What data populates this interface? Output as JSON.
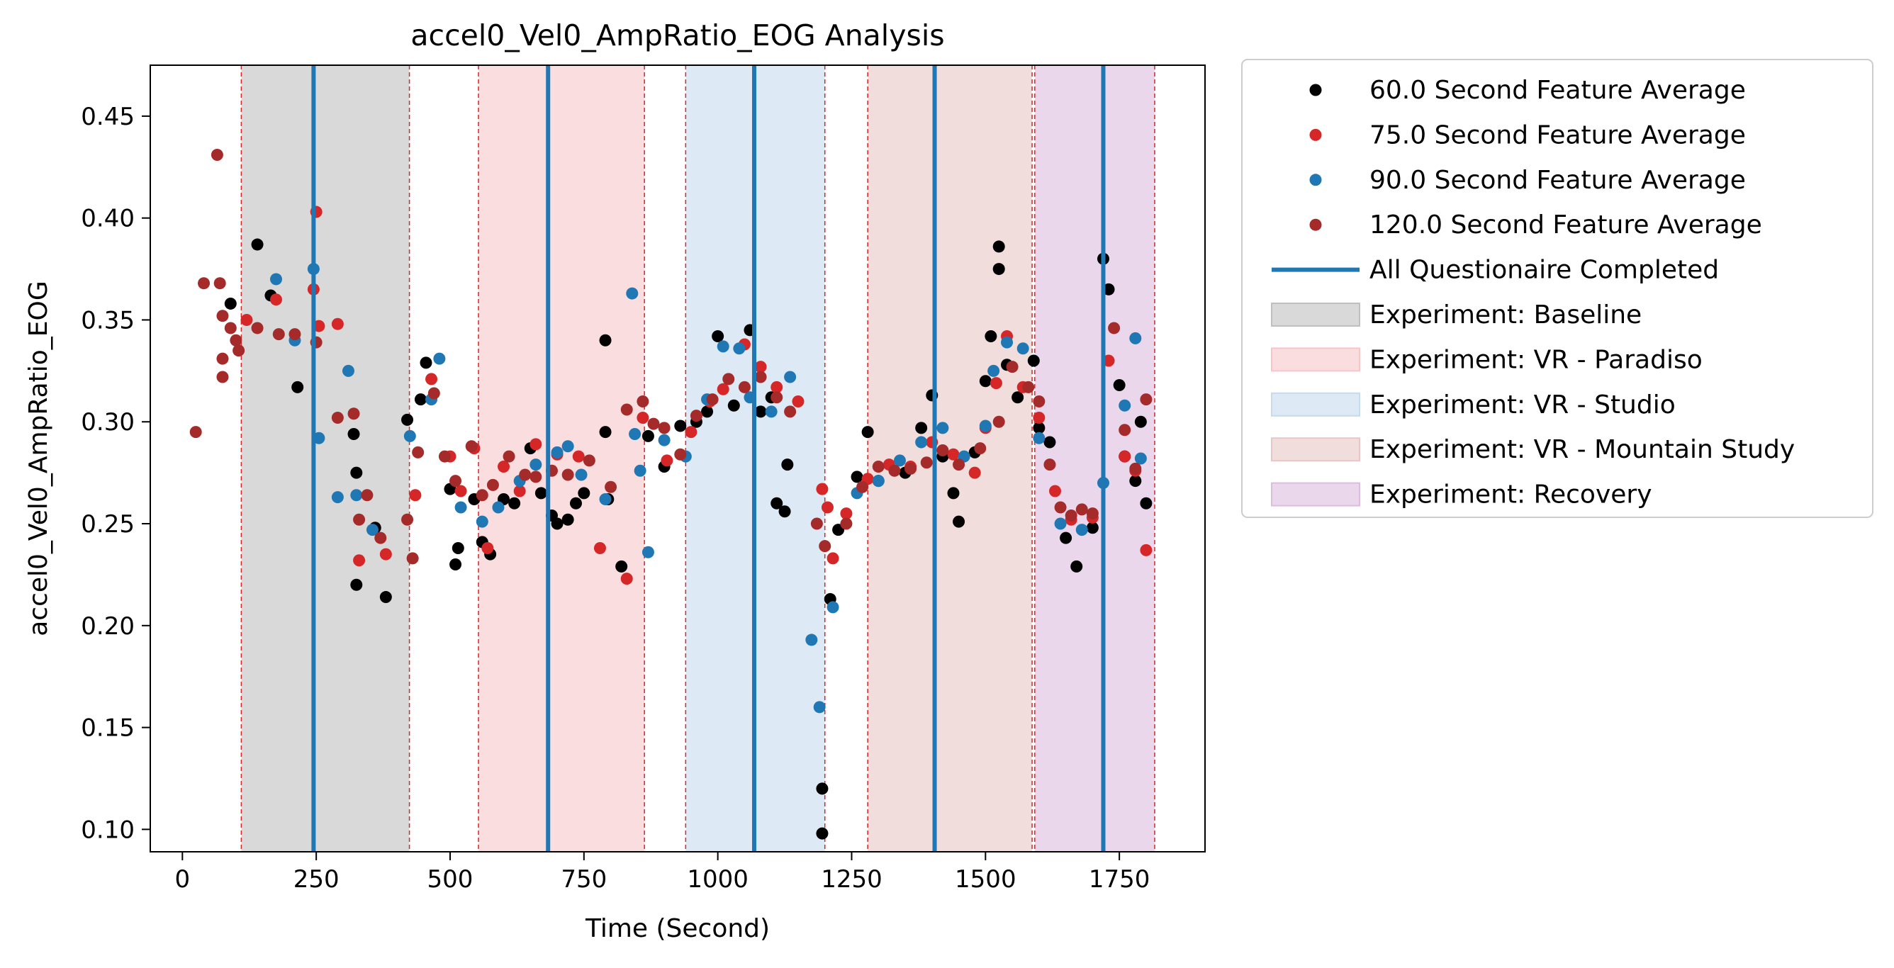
{
  "chart_data": {
    "type": "scatter",
    "title": "accel0_Vel0_AmpRatio_EOG Analysis",
    "xlabel": "Time (Second)",
    "ylabel": "accel0_Vel0_AmpRatio_EOG",
    "xlim": [
      -60,
      1910
    ],
    "ylim": [
      0.089,
      0.475
    ],
    "x_ticks": [
      0,
      250,
      500,
      750,
      1000,
      1250,
      1500,
      1750
    ],
    "y_ticks": [
      0.1,
      0.15,
      0.2,
      0.25,
      0.3,
      0.35,
      0.4,
      0.45
    ],
    "grid": false,
    "legend_position": "outside-right-top",
    "series": [
      {
        "name": "60.0 Second Feature Average",
        "color": "#000000",
        "points": [
          [
            90,
            0.358
          ],
          [
            140,
            0.387
          ],
          [
            165,
            0.362
          ],
          [
            215,
            0.317
          ],
          [
            320,
            0.294
          ],
          [
            325,
            0.275
          ],
          [
            325,
            0.22
          ],
          [
            360,
            0.248
          ],
          [
            380,
            0.214
          ],
          [
            420,
            0.301
          ],
          [
            445,
            0.311
          ],
          [
            455,
            0.329
          ],
          [
            500,
            0.267
          ],
          [
            510,
            0.23
          ],
          [
            515,
            0.238
          ],
          [
            545,
            0.262
          ],
          [
            560,
            0.241
          ],
          [
            575,
            0.235
          ],
          [
            600,
            0.262
          ],
          [
            620,
            0.26
          ],
          [
            650,
            0.287
          ],
          [
            670,
            0.265
          ],
          [
            690,
            0.254
          ],
          [
            700,
            0.25
          ],
          [
            720,
            0.252
          ],
          [
            735,
            0.26
          ],
          [
            750,
            0.265
          ],
          [
            790,
            0.295
          ],
          [
            790,
            0.34
          ],
          [
            795,
            0.262
          ],
          [
            820,
            0.229
          ],
          [
            870,
            0.293
          ],
          [
            900,
            0.278
          ],
          [
            930,
            0.298
          ],
          [
            960,
            0.3
          ],
          [
            980,
            0.305
          ],
          [
            1000,
            0.342
          ],
          [
            1030,
            0.308
          ],
          [
            1060,
            0.345
          ],
          [
            1080,
            0.305
          ],
          [
            1100,
            0.312
          ],
          [
            1110,
            0.26
          ],
          [
            1125,
            0.256
          ],
          [
            1130,
            0.279
          ],
          [
            1195,
            0.12
          ],
          [
            1195,
            0.098
          ],
          [
            1210,
            0.213
          ],
          [
            1225,
            0.247
          ],
          [
            1260,
            0.273
          ],
          [
            1280,
            0.295
          ],
          [
            1300,
            0.271
          ],
          [
            1350,
            0.275
          ],
          [
            1380,
            0.297
          ],
          [
            1400,
            0.313
          ],
          [
            1420,
            0.283
          ],
          [
            1440,
            0.265
          ],
          [
            1450,
            0.251
          ],
          [
            1480,
            0.285
          ],
          [
            1500,
            0.32
          ],
          [
            1510,
            0.342
          ],
          [
            1525,
            0.386
          ],
          [
            1525,
            0.375
          ],
          [
            1540,
            0.328
          ],
          [
            1560,
            0.312
          ],
          [
            1590,
            0.33
          ],
          [
            1600,
            0.297
          ],
          [
            1620,
            0.29
          ],
          [
            1650,
            0.243
          ],
          [
            1670,
            0.229
          ],
          [
            1700,
            0.248
          ],
          [
            1720,
            0.38
          ],
          [
            1730,
            0.365
          ],
          [
            1750,
            0.318
          ],
          [
            1760,
            0.283
          ],
          [
            1780,
            0.271
          ],
          [
            1790,
            0.3
          ],
          [
            1800,
            0.26
          ]
        ]
      },
      {
        "name": "75.0 Second Feature Average",
        "color": "#d62728",
        "points": [
          [
            120,
            0.35
          ],
          [
            175,
            0.36
          ],
          [
            245,
            0.365
          ],
          [
            250,
            0.403
          ],
          [
            255,
            0.347
          ],
          [
            290,
            0.348
          ],
          [
            330,
            0.232
          ],
          [
            380,
            0.235
          ],
          [
            435,
            0.264
          ],
          [
            465,
            0.321
          ],
          [
            500,
            0.283
          ],
          [
            520,
            0.266
          ],
          [
            545,
            0.287
          ],
          [
            570,
            0.238
          ],
          [
            600,
            0.278
          ],
          [
            630,
            0.266
          ],
          [
            660,
            0.289
          ],
          [
            700,
            0.284
          ],
          [
            740,
            0.283
          ],
          [
            780,
            0.238
          ],
          [
            830,
            0.223
          ],
          [
            860,
            0.302
          ],
          [
            905,
            0.281
          ],
          [
            950,
            0.295
          ],
          [
            985,
            0.31
          ],
          [
            1010,
            0.316
          ],
          [
            1050,
            0.338
          ],
          [
            1080,
            0.327
          ],
          [
            1110,
            0.317
          ],
          [
            1150,
            0.31
          ],
          [
            1195,
            0.267
          ],
          [
            1205,
            0.258
          ],
          [
            1215,
            0.233
          ],
          [
            1240,
            0.255
          ],
          [
            1280,
            0.272
          ],
          [
            1320,
            0.279
          ],
          [
            1360,
            0.278
          ],
          [
            1400,
            0.29
          ],
          [
            1440,
            0.284
          ],
          [
            1480,
            0.275
          ],
          [
            1500,
            0.297
          ],
          [
            1520,
            0.319
          ],
          [
            1540,
            0.342
          ],
          [
            1570,
            0.317
          ],
          [
            1600,
            0.302
          ],
          [
            1630,
            0.266
          ],
          [
            1660,
            0.252
          ],
          [
            1700,
            0.253
          ],
          [
            1730,
            0.33
          ],
          [
            1760,
            0.283
          ],
          [
            1780,
            0.276
          ],
          [
            1800,
            0.237
          ]
        ]
      },
      {
        "name": "90.0 Second Feature Average",
        "color": "#1f77b4",
        "points": [
          [
            175,
            0.37
          ],
          [
            210,
            0.34
          ],
          [
            245,
            0.375
          ],
          [
            255,
            0.292
          ],
          [
            290,
            0.263
          ],
          [
            310,
            0.325
          ],
          [
            325,
            0.264
          ],
          [
            355,
            0.247
          ],
          [
            425,
            0.293
          ],
          [
            465,
            0.311
          ],
          [
            480,
            0.331
          ],
          [
            520,
            0.258
          ],
          [
            560,
            0.251
          ],
          [
            590,
            0.258
          ],
          [
            630,
            0.271
          ],
          [
            660,
            0.279
          ],
          [
            700,
            0.285
          ],
          [
            720,
            0.288
          ],
          [
            745,
            0.274
          ],
          [
            790,
            0.262
          ],
          [
            840,
            0.363
          ],
          [
            845,
            0.294
          ],
          [
            855,
            0.276
          ],
          [
            870,
            0.236
          ],
          [
            900,
            0.291
          ],
          [
            940,
            0.283
          ],
          [
            980,
            0.311
          ],
          [
            1010,
            0.337
          ],
          [
            1040,
            0.336
          ],
          [
            1060,
            0.312
          ],
          [
            1100,
            0.305
          ],
          [
            1135,
            0.322
          ],
          [
            1175,
            0.193
          ],
          [
            1190,
            0.16
          ],
          [
            1215,
            0.209
          ],
          [
            1260,
            0.265
          ],
          [
            1300,
            0.271
          ],
          [
            1340,
            0.281
          ],
          [
            1380,
            0.29
          ],
          [
            1420,
            0.297
          ],
          [
            1460,
            0.283
          ],
          [
            1500,
            0.298
          ],
          [
            1515,
            0.325
          ],
          [
            1540,
            0.339
          ],
          [
            1570,
            0.336
          ],
          [
            1600,
            0.292
          ],
          [
            1640,
            0.25
          ],
          [
            1680,
            0.247
          ],
          [
            1720,
            0.27
          ],
          [
            1760,
            0.308
          ],
          [
            1780,
            0.341
          ],
          [
            1790,
            0.282
          ]
        ]
      },
      {
        "name": "120.0 Second Feature Average",
        "color": "#a52a2a",
        "points": [
          [
            25,
            0.295
          ],
          [
            40,
            0.368
          ],
          [
            65,
            0.431
          ],
          [
            70,
            0.368
          ],
          [
            75,
            0.352
          ],
          [
            75,
            0.331
          ],
          [
            75,
            0.322
          ],
          [
            90,
            0.346
          ],
          [
            100,
            0.34
          ],
          [
            105,
            0.335
          ],
          [
            140,
            0.346
          ],
          [
            180,
            0.343
          ],
          [
            210,
            0.343
          ],
          [
            250,
            0.339
          ],
          [
            290,
            0.302
          ],
          [
            320,
            0.304
          ],
          [
            330,
            0.252
          ],
          [
            345,
            0.264
          ],
          [
            370,
            0.243
          ],
          [
            420,
            0.252
          ],
          [
            430,
            0.233
          ],
          [
            440,
            0.285
          ],
          [
            470,
            0.314
          ],
          [
            490,
            0.283
          ],
          [
            510,
            0.271
          ],
          [
            540,
            0.288
          ],
          [
            560,
            0.264
          ],
          [
            580,
            0.269
          ],
          [
            610,
            0.283
          ],
          [
            640,
            0.274
          ],
          [
            660,
            0.273
          ],
          [
            690,
            0.276
          ],
          [
            720,
            0.274
          ],
          [
            760,
            0.281
          ],
          [
            800,
            0.268
          ],
          [
            830,
            0.306
          ],
          [
            860,
            0.31
          ],
          [
            880,
            0.299
          ],
          [
            900,
            0.297
          ],
          [
            930,
            0.284
          ],
          [
            960,
            0.303
          ],
          [
            990,
            0.311
          ],
          [
            1020,
            0.321
          ],
          [
            1050,
            0.317
          ],
          [
            1080,
            0.322
          ],
          [
            1110,
            0.312
          ],
          [
            1135,
            0.305
          ],
          [
            1185,
            0.25
          ],
          [
            1200,
            0.239
          ],
          [
            1240,
            0.25
          ],
          [
            1270,
            0.268
          ],
          [
            1300,
            0.278
          ],
          [
            1330,
            0.276
          ],
          [
            1360,
            0.277
          ],
          [
            1390,
            0.28
          ],
          [
            1420,
            0.286
          ],
          [
            1450,
            0.279
          ],
          [
            1490,
            0.287
          ],
          [
            1525,
            0.3
          ],
          [
            1550,
            0.327
          ],
          [
            1580,
            0.317
          ],
          [
            1600,
            0.31
          ],
          [
            1620,
            0.279
          ],
          [
            1640,
            0.258
          ],
          [
            1660,
            0.254
          ],
          [
            1680,
            0.257
          ],
          [
            1700,
            0.255
          ],
          [
            1740,
            0.346
          ],
          [
            1760,
            0.296
          ],
          [
            1780,
            0.277
          ],
          [
            1800,
            0.311
          ]
        ]
      }
    ],
    "vertical_lines": {
      "name": "All Questionaire Completed",
      "color": "#1f77b4",
      "x": [
        245,
        683,
        1068,
        1405,
        1720
      ]
    },
    "regions": [
      {
        "name": "Experiment: Baseline",
        "color": "#bfbfbf",
        "start": 110,
        "end": 424
      },
      {
        "name": "Experiment: VR - Paradiso",
        "color": "#f6c6c9",
        "start": 553,
        "end": 863
      },
      {
        "name": "Experiment: VR - Studio",
        "color": "#c7dbed",
        "start": 940,
        "end": 1200
      },
      {
        "name": "Experiment: VR - Mountain Study",
        "color": "#e9c6c6",
        "start": 1280,
        "end": 1587
      },
      {
        "name": "Experiment: Recovery",
        "color": "#ddbcdf",
        "start": 1592,
        "end": 1816
      }
    ],
    "region_edge_color": "#d62728"
  }
}
